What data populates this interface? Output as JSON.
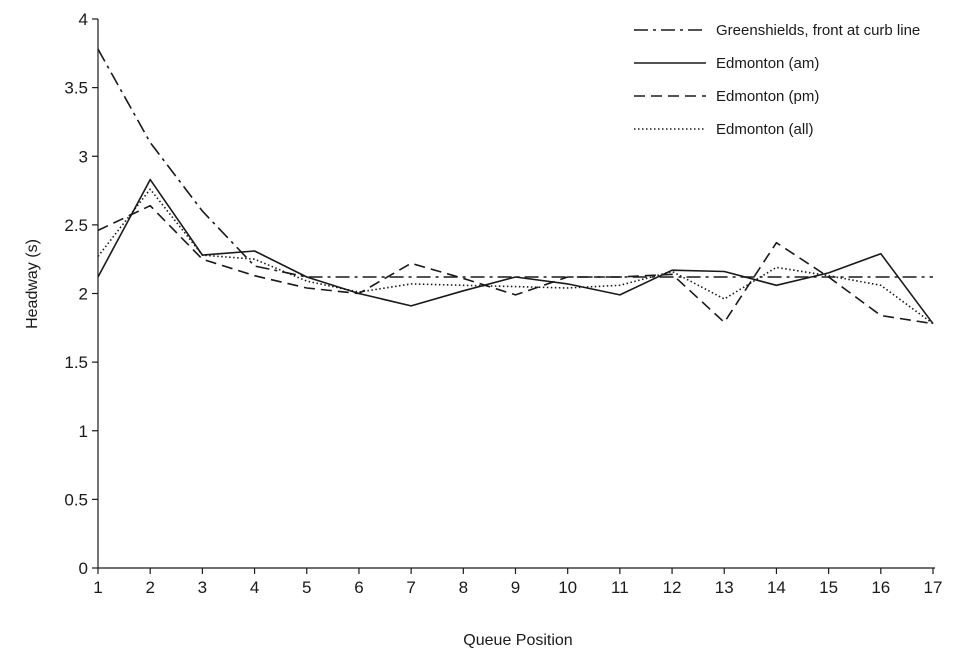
{
  "chart_data": {
    "type": "line",
    "title": "",
    "xlabel": "Queue Position",
    "ylabel": "Headway (s)",
    "xlim": [
      1,
      17
    ],
    "ylim": [
      0,
      4
    ],
    "grid": false,
    "legend_position": "top-right",
    "x_ticks": [
      1,
      2,
      3,
      4,
      5,
      6,
      7,
      8,
      9,
      10,
      11,
      12,
      13,
      14,
      15,
      16,
      17
    ],
    "x_tick_labels": [
      "1",
      "2",
      "3",
      "4",
      "5",
      "6",
      "7",
      "8",
      "9",
      "10",
      "11",
      "12",
      "13",
      "14",
      "15",
      "16",
      "17"
    ],
    "y_ticks": [
      0,
      0.5,
      1,
      1.5,
      2,
      2.5,
      3,
      3.5,
      4
    ],
    "y_tick_labels": [
      "0",
      "0.5",
      "1",
      "1.5",
      "2",
      "2.5",
      "3",
      "3.5",
      "4"
    ],
    "series": [
      {
        "name": "Greenshields, front at curb line",
        "style": "dashdot",
        "color": "#1a1a1a",
        "x": [
          1,
          2,
          3,
          4,
          5,
          6,
          7,
          8,
          9,
          10,
          11,
          12,
          13,
          14,
          15,
          16,
          17
        ],
        "values": [
          3.78,
          3.1,
          2.6,
          2.2,
          2.12,
          2.12,
          2.12,
          2.12,
          2.12,
          2.12,
          2.12,
          2.12,
          2.12,
          2.12,
          2.12,
          2.12,
          2.12
        ]
      },
      {
        "name": "Edmonton (am)",
        "style": "solid",
        "color": "#1a1a1a",
        "x": [
          1,
          2,
          3,
          4,
          5,
          6,
          7,
          8,
          9,
          10,
          11,
          12,
          13,
          14,
          15,
          16,
          17
        ],
        "values": [
          2.12,
          2.83,
          2.28,
          2.31,
          2.12,
          2.0,
          1.91,
          2.02,
          2.12,
          2.07,
          1.99,
          2.17,
          2.16,
          2.06,
          2.15,
          2.29,
          1.78
        ]
      },
      {
        "name": "Edmonton (pm)",
        "style": "dashed",
        "color": "#1a1a1a",
        "x": [
          1,
          2,
          3,
          4,
          5,
          6,
          7,
          8,
          9,
          10,
          11,
          12,
          13,
          14,
          15,
          16,
          17
        ],
        "values": [
          2.46,
          2.64,
          2.25,
          2.13,
          2.04,
          2.0,
          2.22,
          2.11,
          1.99,
          2.12,
          2.12,
          2.14,
          1.79,
          2.37,
          2.12,
          1.84,
          1.78
        ]
      },
      {
        "name": "Edmonton (all)",
        "style": "dotted",
        "color": "#1a1a1a",
        "x": [
          1,
          2,
          3,
          4,
          5,
          6,
          7,
          8,
          9,
          10,
          11,
          12,
          13,
          14,
          15,
          16,
          17
        ],
        "values": [
          2.27,
          2.76,
          2.28,
          2.25,
          2.09,
          2.01,
          2.07,
          2.06,
          2.05,
          2.04,
          2.06,
          2.16,
          1.96,
          2.19,
          2.13,
          2.06,
          1.78
        ]
      }
    ]
  }
}
